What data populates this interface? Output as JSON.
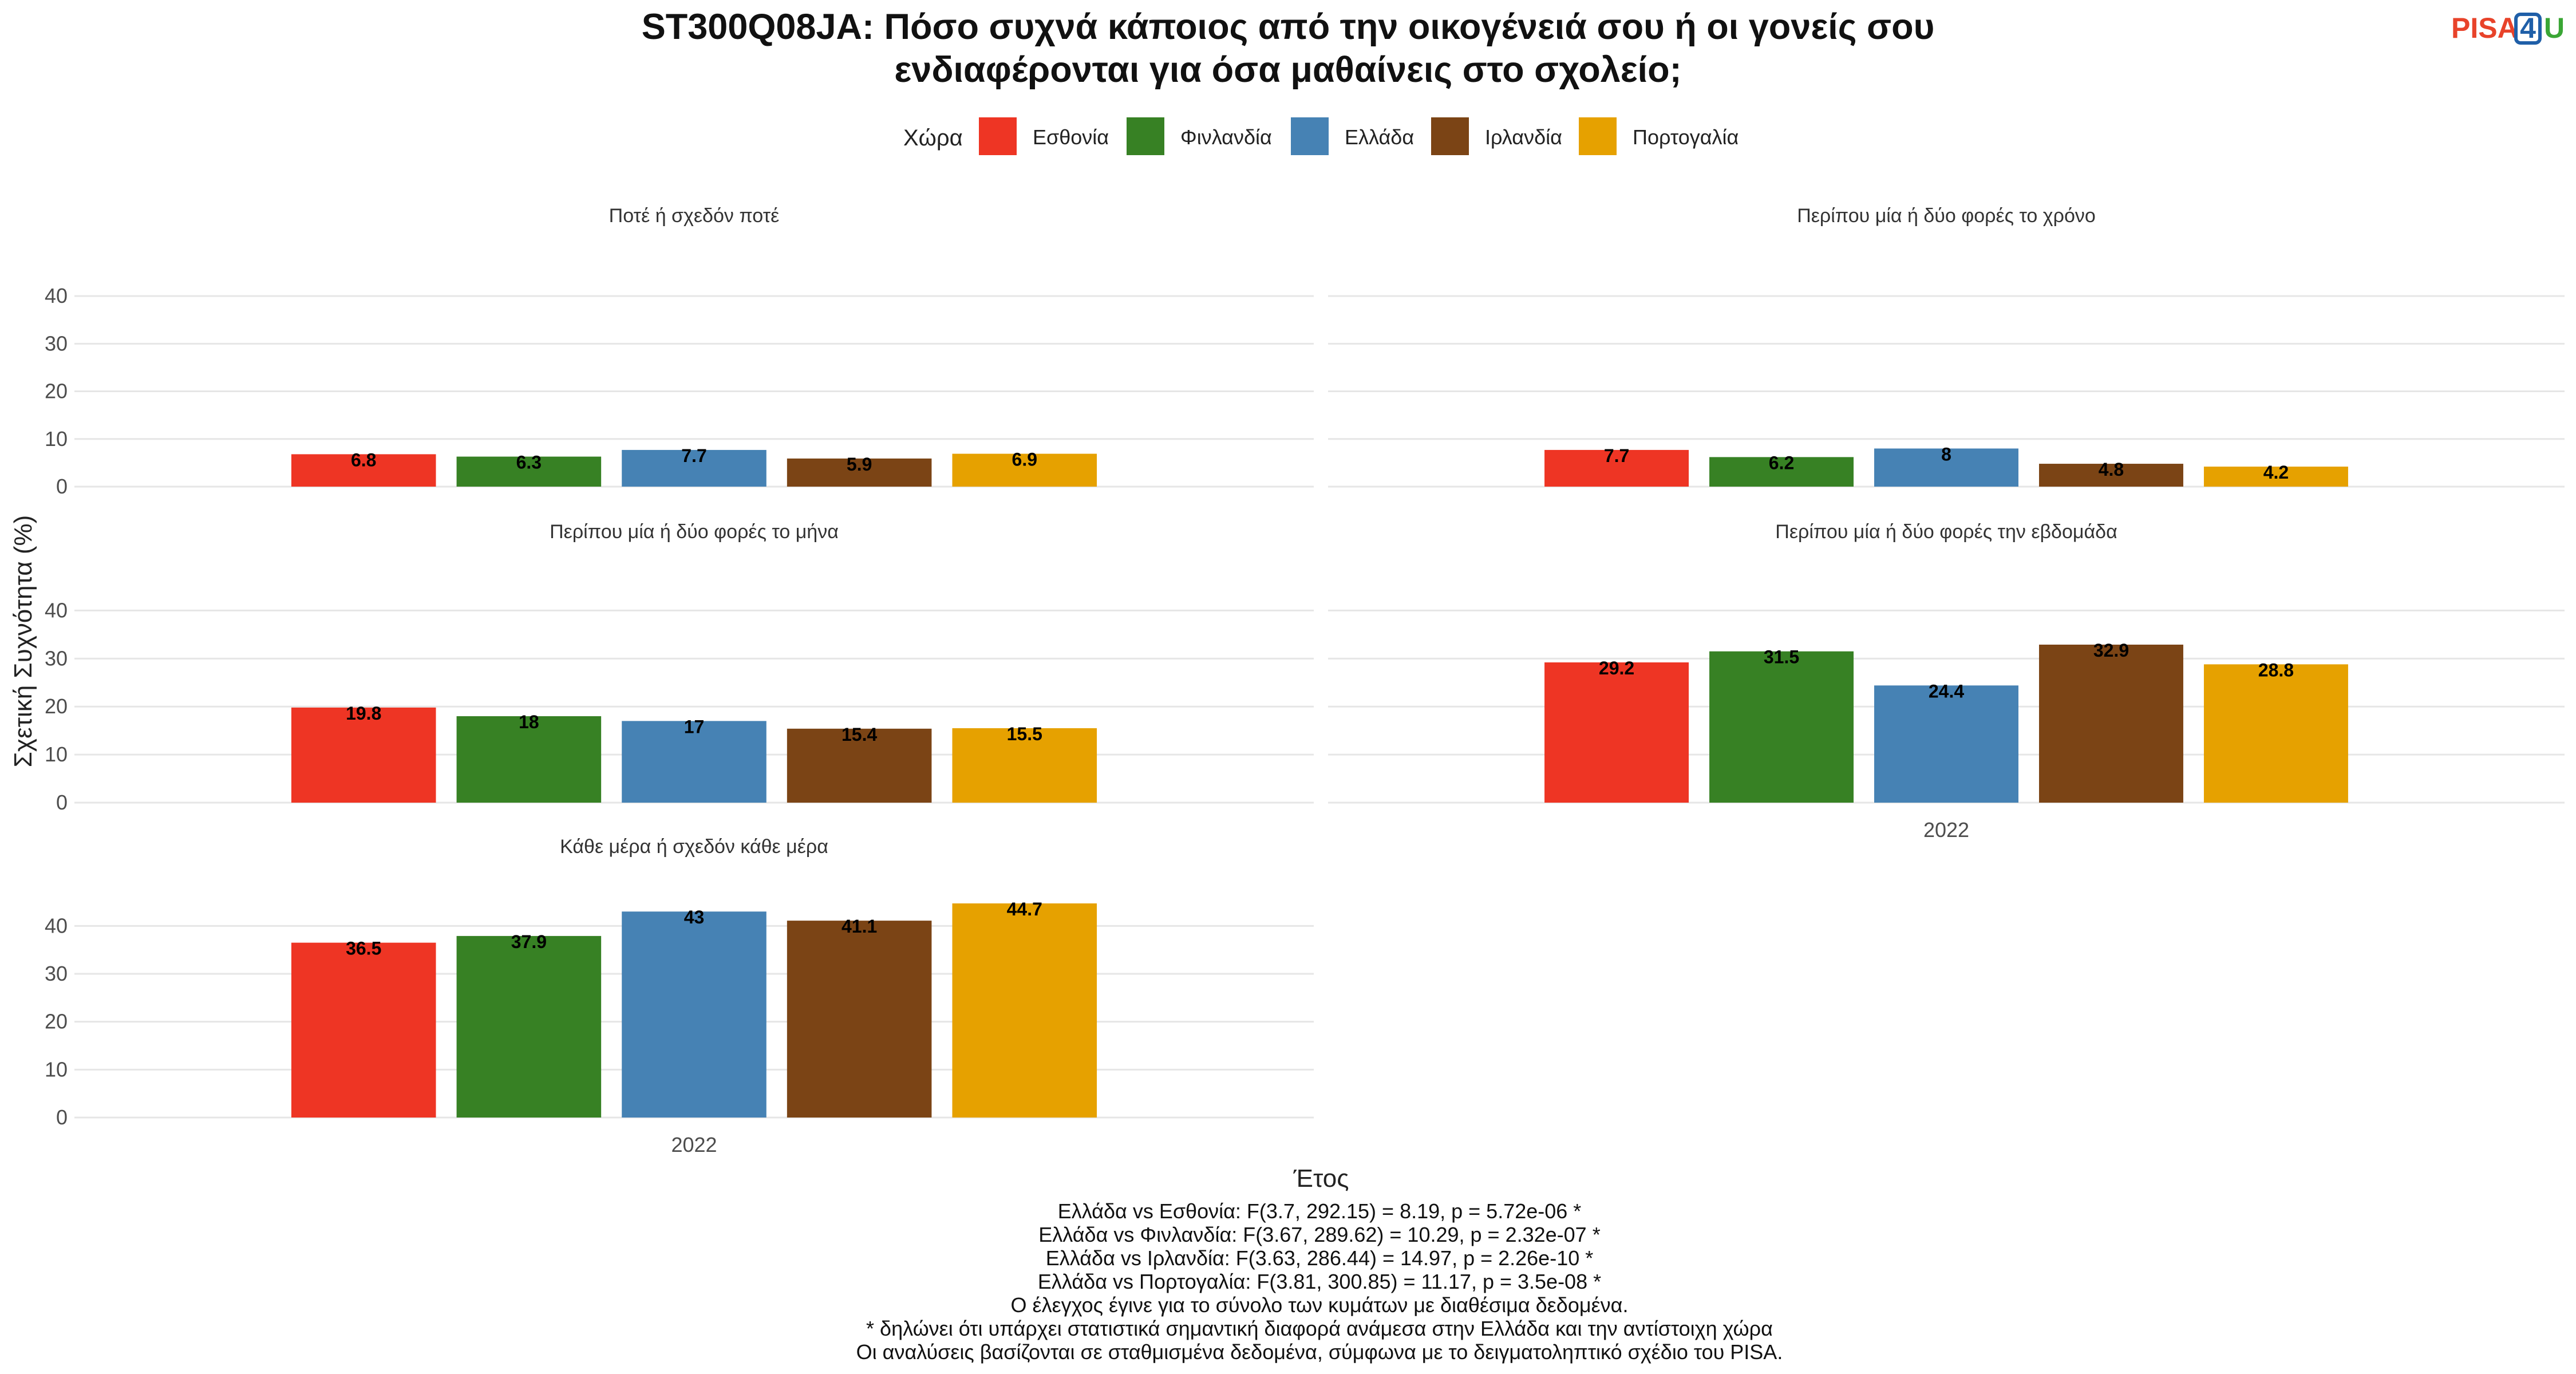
{
  "title_lines": [
    "ST300Q08JA: Πόσο συχνά κάποιος από την οικογένειά σου ή οι γονείς σου",
    "ενδιαφέρονται για όσα μαθαίνεις στο σχολείο;"
  ],
  "logo": {
    "text_a": "PISA",
    "text_b": "4",
    "text_c": "U",
    "color_a": "#e8432a",
    "color_b": "#1f5fa8",
    "color_c": "#3aa635"
  },
  "legend": {
    "title": "Χώρα"
  },
  "colors": {
    "Εσθονία": "#ee3524",
    "Φινλανδία": "#378124",
    "Ελλάδα": "#4682b4",
    "Ιρλανδία": "#7b4415",
    "Πορτογαλία": "#e6a100"
  },
  "chart_data": {
    "type": "bar",
    "x_category": "2022",
    "xlabel": "Έτος",
    "ylabel": "Σχετική Συχνότητα (%)",
    "ylim": [
      0,
      44.7
    ],
    "yticks": [
      0,
      10,
      20,
      30,
      40
    ],
    "grid": true,
    "legend_position": "top",
    "categories": [
      "Εσθονία",
      "Φινλανδία",
      "Ελλάδα",
      "Ιρλανδία",
      "Πορτογαλία"
    ],
    "panels": [
      {
        "name": "Ποτέ ή σχεδόν ποτέ",
        "values": [
          6.8,
          6.3,
          7.7,
          5.9,
          6.9
        ]
      },
      {
        "name": "Περίπου μία ή δύο φορές το χρόνο",
        "values": [
          7.7,
          6.2,
          8,
          4.8,
          4.2
        ]
      },
      {
        "name": "Περίπου μία ή δύο φορές το μήνα",
        "values": [
          19.8,
          18,
          17,
          15.4,
          15.5
        ]
      },
      {
        "name": "Περίπου μία ή δύο φορές την εβδομάδα",
        "values": [
          29.2,
          31.5,
          24.4,
          32.9,
          28.8
        ]
      },
      {
        "name": "Κάθε μέρα ή σχεδόν κάθε μέρα",
        "values": [
          36.5,
          37.9,
          43,
          41.1,
          44.7
        ]
      }
    ]
  },
  "footnotes": [
    "Ελλάδα vs Εσθονία: F(3.7, 292.15) = 8.19, p = 5.72e-06 *",
    "Ελλάδα vs Φινλανδία: F(3.67, 289.62) = 10.29, p = 2.32e-07 *",
    "Ελλάδα vs Ιρλανδία: F(3.63, 286.44) = 14.97, p = 2.26e-10 *",
    "Ελλάδα vs Πορτογαλία: F(3.81, 300.85) = 11.17, p = 3.5e-08 *",
    "Ο έλεγχος έγινε για το σύνολο των κυμάτων με διαθέσιμα δεδομένα.",
    "* δηλώνει ότι υπάρχει στατιστικά σημαντική διαφορά ανάμεσα στην Ελλάδα και την αντίστοιχη χώρα",
    "Οι αναλύσεις βασίζονται σε σταθμισμένα δεδομένα, σύμφωνα με το δειγματοληπτικό σχέδιο του PISA."
  ]
}
